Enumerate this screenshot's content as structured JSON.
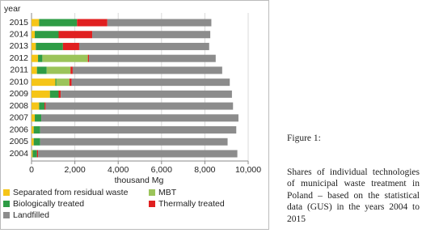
{
  "chart_data": {
    "type": "stacked-bar-horizontal",
    "y_axis_label": "year",
    "x_axis_label": "thousand Mg",
    "categories": [
      "2004",
      "2005",
      "2006",
      "2007",
      "2008",
      "2009",
      "2010",
      "2011",
      "2012",
      "2013",
      "2014",
      "2015"
    ],
    "xlim": [
      0,
      10000
    ],
    "xticks": [
      0,
      {
        "value": 2000,
        "label": "2,000"
      },
      {
        "value": 4000,
        "label": "4,000"
      },
      {
        "value": 6000,
        "label": "6,000"
      },
      {
        "value": 8000,
        "label": "8,000"
      },
      {
        "value": 10000,
        "label": "10,000"
      }
    ],
    "grid": true,
    "series": [
      {
        "name": "Separated from residual waste",
        "color": "#f5c518",
        "values": [
          50,
          100,
          100,
          150,
          350,
          850,
          1100,
          250,
          300,
          200,
          150,
          350
        ]
      },
      {
        "name": "MBT",
        "color": "#9bc45a",
        "values": [
          0,
          0,
          0,
          0,
          0,
          0,
          600,
          1100,
          2100,
          0,
          0,
          0
        ]
      },
      {
        "name": "Biologically treated",
        "color": "#2e9c45",
        "values": [
          200,
          300,
          300,
          300,
          250,
          400,
          50,
          450,
          200,
          1250,
          1100,
          1750
        ]
      },
      {
        "name": "Thermally treated",
        "color": "#e02020",
        "values": [
          50,
          0,
          0,
          0,
          50,
          100,
          100,
          100,
          50,
          750,
          1550,
          1400
        ]
      },
      {
        "name": "Landfilled",
        "color": "#8c8c8c",
        "values": [
          9200,
          8650,
          9050,
          9100,
          8650,
          7900,
          7300,
          6900,
          5850,
          6000,
          5450,
          4800
        ]
      }
    ]
  },
  "figure": {
    "label": "Figure 1:",
    "caption": "Shares of individual technologies of municipal waste treatment in Poland – based on the statistical data (GUS) in the years 2004 to 2015"
  }
}
